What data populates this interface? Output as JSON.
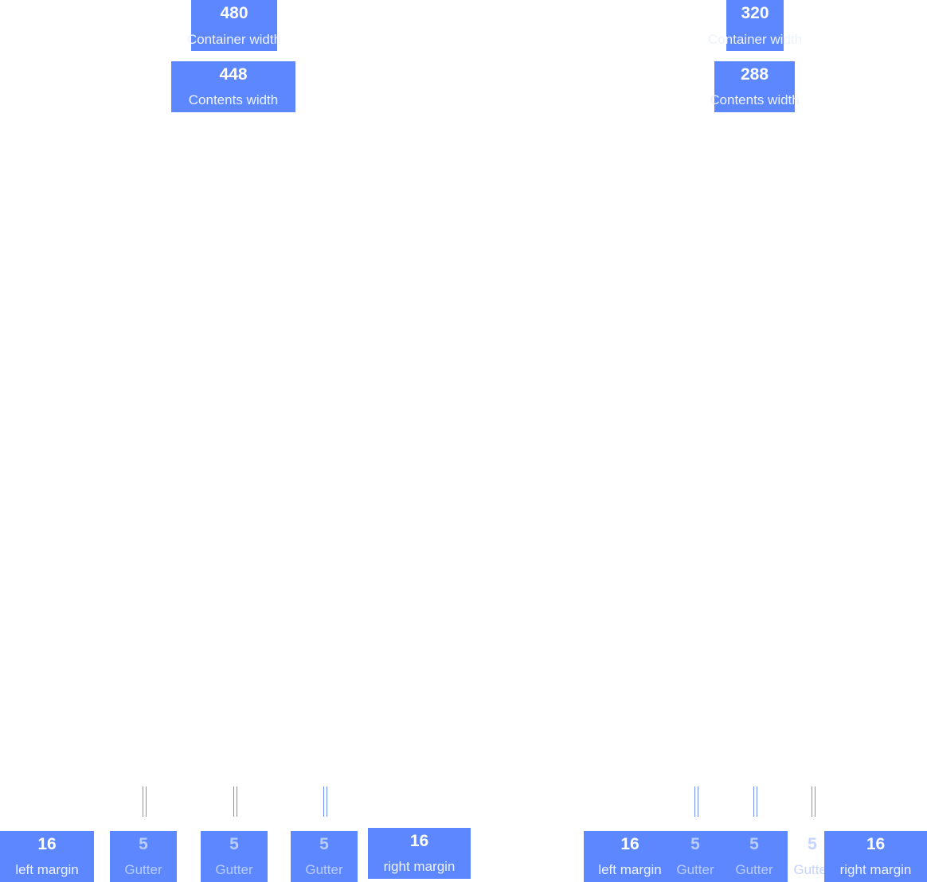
{
  "top_left": {
    "container": {
      "value": "480",
      "label": "Container width"
    },
    "contents": {
      "value": "448",
      "label": "Contents width"
    }
  },
  "top_right": {
    "container": {
      "value": "320",
      "label": "Container width"
    },
    "contents": {
      "value": "288",
      "label": "Contents width"
    }
  },
  "bottom_left": {
    "left_margin": {
      "value": "16",
      "label": "left margin"
    },
    "gutters": [
      {
        "value": "5",
        "label": "Gutter"
      },
      {
        "value": "5",
        "label": "Gutter"
      },
      {
        "value": "5",
        "label": "Gutter"
      }
    ],
    "right_margin": {
      "value": "16",
      "label": "right margin"
    }
  },
  "bottom_right": {
    "left_margin": {
      "value": "16",
      "label": "left margin"
    },
    "gutters": [
      {
        "value": "5",
        "label": "Gutter"
      },
      {
        "value": "5",
        "label": "Gutter"
      },
      {
        "value": "5",
        "label": "Gutter"
      }
    ],
    "right_margin": {
      "value": "16",
      "label": "right margin"
    }
  },
  "colors": {
    "box": "#5c87ff",
    "tick": "#6f8ff5"
  }
}
